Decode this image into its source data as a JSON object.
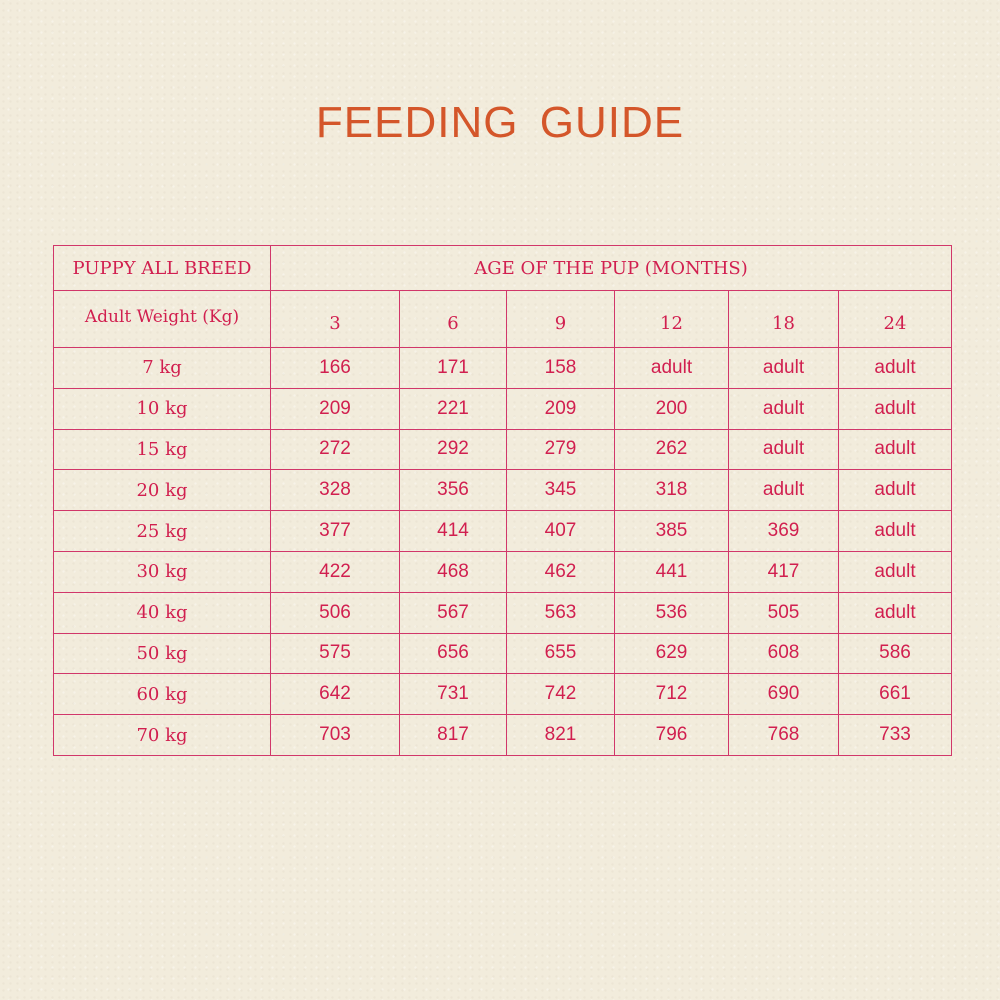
{
  "title": "FEEDING  GUIDE",
  "table": {
    "corner_top": "PUPPY ALL BREED",
    "corner_sub": "Adult Weight (Kg)",
    "age_header": "AGE OF THE PUP (MONTHS)",
    "months": [
      "3",
      "6",
      "9",
      "12",
      "18",
      "24"
    ],
    "rows": [
      {
        "weight": "7  kg",
        "values": [
          "166",
          "171",
          "158",
          "adult",
          "adult",
          "adult"
        ]
      },
      {
        "weight": "10 kg",
        "values": [
          "209",
          "221",
          "209",
          "200",
          "adult",
          "adult"
        ]
      },
      {
        "weight": "15 kg",
        "values": [
          "272",
          "292",
          "279",
          "262",
          "adult",
          "adult"
        ]
      },
      {
        "weight": "20 kg",
        "values": [
          "328",
          "356",
          "345",
          "318",
          "adult",
          "adult"
        ]
      },
      {
        "weight": "25 kg",
        "values": [
          "377",
          "414",
          "407",
          "385",
          "369",
          "adult"
        ]
      },
      {
        "weight": "30 kg",
        "values": [
          "422",
          "468",
          "462",
          "441",
          "417",
          "adult"
        ]
      },
      {
        "weight": "40 kg",
        "values": [
          "506",
          "567",
          "563",
          "536",
          "505",
          "adult"
        ]
      },
      {
        "weight": "50 kg",
        "values": [
          "575",
          "656",
          "655",
          "629",
          "608",
          "586"
        ]
      },
      {
        "weight": "60 kg",
        "values": [
          "642",
          "731",
          "742",
          "712",
          "690",
          "661"
        ]
      },
      {
        "weight": "70 kg",
        "values": [
          "703",
          "817",
          "821",
          "796",
          "768",
          "733"
        ]
      }
    ]
  },
  "colors": {
    "background": "#f2ecdc",
    "title": "#d4562a",
    "table_text": "#d11f4f",
    "table_border": "#d1376a"
  }
}
